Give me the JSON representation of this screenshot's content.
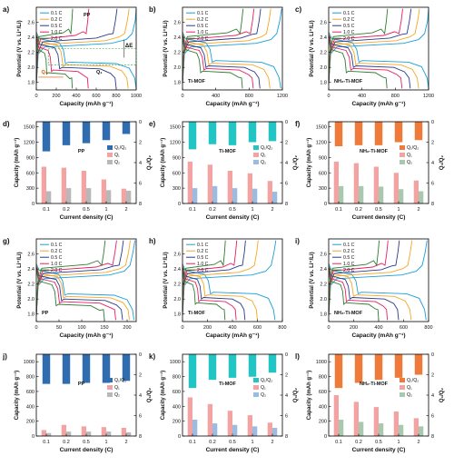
{
  "colors": {
    "c01": "#1b9fd8",
    "c02": "#f5a623",
    "c05": "#2b3a8c",
    "c10": "#e91e63",
    "c20": "#2e7d32",
    "pp_ratio": "#2f6db0",
    "pp_q1": "#f4a3a3",
    "pp_q2": "#b8b8b8",
    "ti_ratio": "#22c4c4",
    "ti_q1": "#f4a3a3",
    "ti_q2": "#9bbbe0",
    "nh2_ratio": "#f07a3a",
    "nh2_q1": "#f4a3a3",
    "nh2_q2": "#a8c8b0",
    "annot_box": "#2e9e3e"
  },
  "chart_data": [
    {
      "panel": "a)",
      "type": "line",
      "title": "PP",
      "xlabel": "Capacity (mAh g⁻¹)",
      "ylabel": "Potential (V vs. Li⁺/Li)",
      "xlim": [
        0,
        1000
      ],
      "ylim": [
        1.7,
        2.8
      ],
      "xticks": [
        "0",
        "200",
        "400",
        "600",
        "800",
        "1000"
      ],
      "yticks": [
        "1.8",
        "2.0",
        "2.2",
        "2.4",
        "2.6"
      ],
      "legend": [
        "0.1 C",
        "0.2 C",
        "0.5 C",
        "1.0 C",
        "2.0 C"
      ],
      "legend_position": "top-left",
      "annotations": [
        "ΔE",
        "Q₁",
        "Q₂"
      ],
      "series": [
        {
          "name": "0.1 C",
          "capacity": 1000
        },
        {
          "name": "0.2 C",
          "capacity": 920
        },
        {
          "name": "0.5 C",
          "capacity": 800
        },
        {
          "name": "1.0 C",
          "capacity": 520
        },
        {
          "name": "2.0 C",
          "capacity": 360
        }
      ]
    },
    {
      "panel": "b)",
      "type": "line",
      "title": "Ti-MOF",
      "xlabel": "Capacity (mAh g⁻¹)",
      "ylabel": "Potential (V vs. Li⁺/Li)",
      "xlim": [
        0,
        1200
      ],
      "ylim": [
        1.7,
        2.8
      ],
      "xticks": [
        "0",
        "400",
        "800",
        "1200"
      ],
      "yticks": [
        "1.8",
        "2.0",
        "2.2",
        "2.4",
        "2.6"
      ],
      "legend": [
        "0.1 C",
        "0.2 C",
        "0.5 C",
        "1.0 C",
        "2.0 C"
      ],
      "legend_position": "top-left",
      "series": [
        {
          "name": "0.1 C",
          "capacity": 1180
        },
        {
          "name": "0.2 C",
          "capacity": 1050
        },
        {
          "name": "0.5 C",
          "capacity": 930
        },
        {
          "name": "1.0 C",
          "capacity": 850
        },
        {
          "name": "2.0 C",
          "capacity": 720
        }
      ]
    },
    {
      "panel": "c)",
      "type": "line",
      "title": "NH₂-Ti-MOF",
      "xlabel": "Capacity (mAh g⁻¹)",
      "ylabel": "Potential (V vs. Li⁺/Li)",
      "xlim": [
        0,
        1200
      ],
      "ylim": [
        1.7,
        2.8
      ],
      "xticks": [
        "0",
        "400",
        "800",
        "1200"
      ],
      "yticks": [
        "1.8",
        "2.0",
        "2.2",
        "2.4",
        "2.6"
      ],
      "legend": [
        "0.1 C",
        "0.2 C",
        "0.5 C",
        "1.0 C",
        "2.0 C"
      ],
      "legend_position": "top-left",
      "series": [
        {
          "name": "0.1 C",
          "capacity": 1200
        },
        {
          "name": "0.2 C",
          "capacity": 1080
        },
        {
          "name": "0.5 C",
          "capacity": 980
        },
        {
          "name": "1.0 C",
          "capacity": 880
        },
        {
          "name": "2.0 C",
          "capacity": 700
        }
      ]
    },
    {
      "panel": "d)",
      "type": "bar",
      "title": "PP",
      "xlabel": "Current density (C)",
      "ylabel": "Capacity (mAh g⁻¹)",
      "y2label": "Q₁/Q₂",
      "categories": [
        "0.1",
        "0.2",
        "0.5",
        "1",
        "2"
      ],
      "ylim": [
        0,
        1600
      ],
      "yticks": [
        "0",
        "300",
        "600",
        "900",
        "1200",
        "1500"
      ],
      "y2lim": [
        0,
        8
      ],
      "y2ticks": [
        "0",
        "2",
        "4",
        "6",
        "8"
      ],
      "legend": [
        "Q₁/Q₂",
        "Q₁",
        "Q₂"
      ],
      "series": [
        {
          "name": "Q₁/Q₂",
          "values": [
            2.9,
            2.3,
            2.1,
            1.8,
            1.2
          ]
        },
        {
          "name": "Q₁",
          "values": [
            720,
            700,
            640,
            470,
            290
          ]
        },
        {
          "name": "Q₂",
          "values": [
            240,
            300,
            300,
            260,
            250
          ]
        }
      ]
    },
    {
      "panel": "e)",
      "type": "bar",
      "title": "Ti-MOF",
      "xlabel": "Current density (C)",
      "ylabel": "Capacity (mAh g⁻¹)",
      "y2label": "Q₁/Q₂",
      "categories": [
        "0.1",
        "0.2",
        "0.5",
        "1",
        "2"
      ],
      "ylim": [
        0,
        1600
      ],
      "yticks": [
        "0",
        "300",
        "600",
        "900",
        "1200",
        "1500"
      ],
      "y2lim": [
        0,
        8
      ],
      "y2ticks": [
        "0",
        "2",
        "4",
        "6",
        "8"
      ],
      "legend": [
        "Q₁/Q₂",
        "Q₁",
        "Q₂"
      ],
      "series": [
        {
          "name": "Q₁/Q₂",
          "values": [
            2.7,
            2.2,
            2.3,
            2.0,
            1.9
          ]
        },
        {
          "name": "Q₁",
          "values": [
            820,
            760,
            640,
            590,
            440
          ]
        },
        {
          "name": "Q₂",
          "values": [
            300,
            340,
            300,
            290,
            230
          ]
        }
      ]
    },
    {
      "panel": "f)",
      "type": "bar",
      "title": "NH₂-Ti-MOF",
      "xlabel": "Current density (C)",
      "ylabel": "Capacity (mAh g⁻¹)",
      "y2label": "Q₁/Q₂",
      "categories": [
        "0.1",
        "0.2",
        "0.5",
        "1",
        "2"
      ],
      "ylim": [
        0,
        1600
      ],
      "yticks": [
        "0",
        "300",
        "600",
        "900",
        "1200",
        "1500"
      ],
      "y2lim": [
        0,
        8
      ],
      "y2ticks": [
        "0",
        "2",
        "4",
        "6",
        "8"
      ],
      "legend": [
        "Q₁/Q₂",
        "Q₁",
        "Q₂"
      ],
      "series": [
        {
          "name": "Q₁/Q₂",
          "values": [
            2.4,
            2.3,
            2.3,
            2.0,
            1.8
          ]
        },
        {
          "name": "Q₁",
          "values": [
            820,
            790,
            720,
            600,
            450
          ]
        },
        {
          "name": "Q₂",
          "values": [
            340,
            340,
            330,
            280,
            240
          ]
        }
      ]
    },
    {
      "panel": "g)",
      "type": "line",
      "title": "PP",
      "xlabel": "Capacity (mAh g⁻¹)",
      "ylabel": "Potential (V vs. Li⁺/Li)",
      "xlim": [
        0,
        220
      ],
      "ylim": [
        1.7,
        2.8
      ],
      "xticks": [
        "0",
        "50",
        "100",
        "150",
        "200"
      ],
      "yticks": [
        "1.8",
        "2.0",
        "2.2",
        "2.4",
        "2.6"
      ],
      "legend": [
        "0.1 C",
        "0.2 C",
        "0.5 C",
        "1.0 C",
        "2.0 C"
      ],
      "legend_position": "top-left",
      "series": [
        {
          "name": "0.1 C",
          "capacity": 215
        },
        {
          "name": "0.2 C",
          "capacity": 205
        },
        {
          "name": "0.5 C",
          "capacity": 190
        },
        {
          "name": "1.0 C",
          "capacity": 175
        },
        {
          "name": "2.0 C",
          "capacity": 150
        }
      ]
    },
    {
      "panel": "h)",
      "type": "line",
      "title": "Ti-MOF",
      "xlabel": "Capacity (mAh g⁻¹)",
      "ylabel": "Potential (V vs. Li⁺/Li)",
      "xlim": [
        0,
        800
      ],
      "ylim": [
        1.7,
        2.8
      ],
      "xticks": [
        "0",
        "200",
        "400",
        "600",
        "800"
      ],
      "yticks": [
        "1.8",
        "2.0",
        "2.2",
        "2.4",
        "2.6"
      ],
      "legend": [
        "0.1 C",
        "0.2 C",
        "0.5 C",
        "1.0 C",
        "2.0 C"
      ],
      "legend_position": "top-left",
      "series": [
        {
          "name": "0.1 C",
          "capacity": 740
        },
        {
          "name": "0.2 C",
          "capacity": 600
        },
        {
          "name": "0.5 C",
          "capacity": 500
        },
        {
          "name": "1.0 C",
          "capacity": 430
        },
        {
          "name": "2.0 C",
          "capacity": 340
        }
      ]
    },
    {
      "panel": "i)",
      "type": "line",
      "title": "NH₂-Ti-MOF",
      "xlabel": "Capacity (mAh g⁻¹)",
      "ylabel": "Potential (V vs. Li⁺/Li)",
      "xlim": [
        0,
        800
      ],
      "ylim": [
        1.7,
        2.8
      ],
      "xticks": [
        "0",
        "200",
        "400",
        "600",
        "800"
      ],
      "yticks": [
        "1.8",
        "2.0",
        "2.2",
        "2.4",
        "2.6"
      ],
      "legend": [
        "0.1 C",
        "0.2 C",
        "0.5 C",
        "1.0 C",
        "2.0 C"
      ],
      "legend_position": "top-left",
      "series": [
        {
          "name": "0.1 C",
          "capacity": 780
        },
        {
          "name": "0.2 C",
          "capacity": 660
        },
        {
          "name": "0.5 C",
          "capacity": 560
        },
        {
          "name": "1.0 C",
          "capacity": 470
        },
        {
          "name": "2.0 C",
          "capacity": 400
        }
      ]
    },
    {
      "panel": "j)",
      "type": "bar",
      "title": "PP",
      "xlabel": "Current density (C)",
      "ylabel": "Capacity (mAh g⁻¹)",
      "y2label": "Q₁/Q₂",
      "categories": [
        "0.1",
        "0.2",
        "0.5",
        "1",
        "2"
      ],
      "ylim": [
        0,
        1100
      ],
      "yticks": [
        "0",
        "200",
        "400",
        "600",
        "800",
        "1000"
      ],
      "y2lim": [
        0,
        8
      ],
      "y2ticks": [
        "0",
        "2",
        "4",
        "6",
        "8"
      ],
      "legend": [
        "Q₁/Q₂",
        "Q₁",
        "Q₂"
      ],
      "series": [
        {
          "name": "Q₁/Q₂",
          "values": [
            2.9,
            2.9,
            2.8,
            2.8,
            2.6
          ]
        },
        {
          "name": "Q₁",
          "values": [
            80,
            150,
            130,
            120,
            110
          ]
        },
        {
          "name": "Q₂",
          "values": [
            40,
            60,
            60,
            60,
            50
          ]
        }
      ]
    },
    {
      "panel": "k)",
      "type": "bar",
      "title": "Ti-MOF",
      "xlabel": "Current density (C)",
      "ylabel": "Capacity (mAh g⁻¹)",
      "y2label": "Q₁/Q₂",
      "categories": [
        "0.1",
        "0.2",
        "0.5",
        "1",
        "2"
      ],
      "ylim": [
        0,
        1100
      ],
      "yticks": [
        "0",
        "200",
        "400",
        "600",
        "800",
        "1000"
      ],
      "y2lim": [
        0,
        8
      ],
      "y2ticks": [
        "0",
        "2",
        "4",
        "6",
        "8"
      ],
      "legend": [
        "Q₁/Q₂",
        "Q₁",
        "Q₂"
      ],
      "series": [
        {
          "name": "Q₁/Q₂",
          "values": [
            3.3,
            2.5,
            2.3,
            2.2,
            1.8
          ]
        },
        {
          "name": "Q₁",
          "values": [
            520,
            430,
            340,
            280,
            180
          ]
        },
        {
          "name": "Q₂",
          "values": [
            220,
            170,
            150,
            130,
            110
          ]
        }
      ]
    },
    {
      "panel": "l)",
      "type": "bar",
      "title": "NH₂-Ti-MOF",
      "xlabel": "Current density (C)",
      "ylabel": "Capacity (mAh g⁻¹)",
      "y2label": "Q₁/Q₂",
      "categories": [
        "0.1",
        "0.2",
        "0.5",
        "1",
        "2"
      ],
      "ylim": [
        0,
        1100
      ],
      "yticks": [
        "0",
        "200",
        "400",
        "600",
        "800",
        "1000"
      ],
      "y2lim": [
        0,
        8
      ],
      "y2ticks": [
        "0",
        "2",
        "4",
        "6",
        "8"
      ],
      "legend": [
        "Q₁/Q₂",
        "Q₁",
        "Q₂"
      ],
      "series": [
        {
          "name": "Q₁/Q₂",
          "values": [
            3.3,
            2.8,
            2.5,
            2.3,
            2.0
          ]
        },
        {
          "name": "Q₁",
          "values": [
            550,
            460,
            390,
            330,
            240
          ]
        },
        {
          "name": "Q₂",
          "values": [
            220,
            190,
            170,
            150,
            130
          ]
        }
      ]
    }
  ]
}
